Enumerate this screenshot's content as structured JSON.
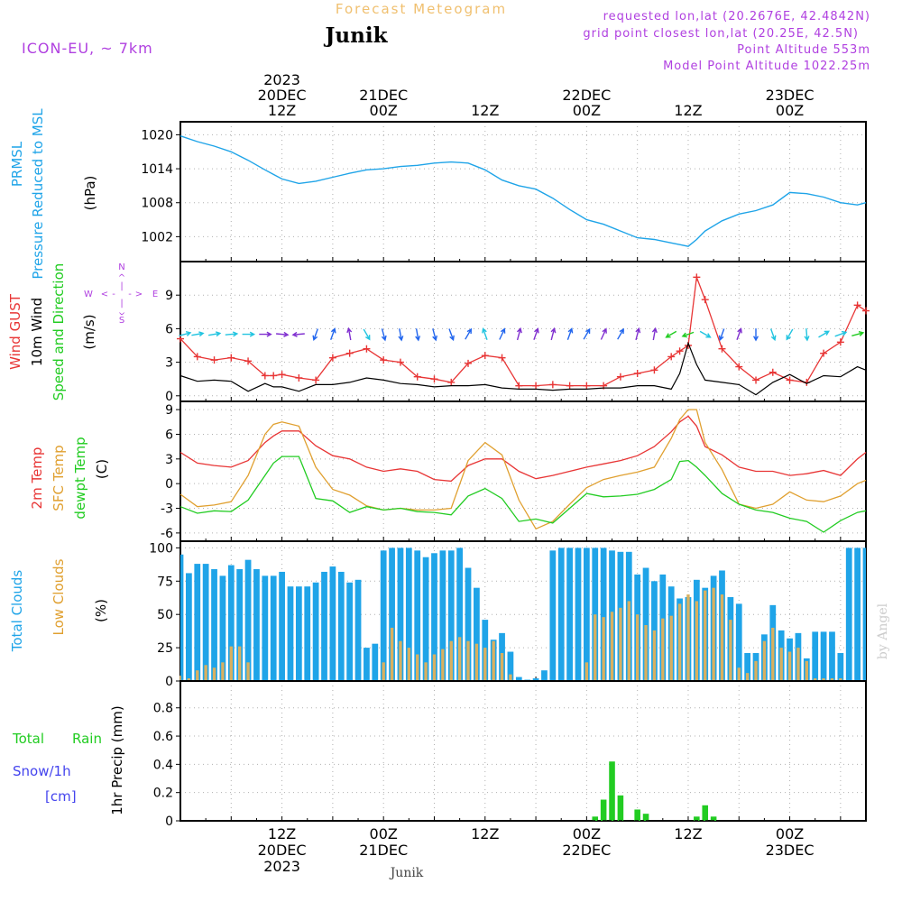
{
  "header": {
    "title": "Forecast Meteogram",
    "location": "Junik",
    "model": "ICON-EU, ~ 7km",
    "requested": "requested lon,lat (20.2676E, 42.4842N)",
    "grid_point": "grid point closest lon,lat (20.25E, 42.5N)",
    "point_altitude": "Point Altitude 553m",
    "model_altitude": "Model Point Altitude 1022.25m"
  },
  "colors": {
    "blue": "#1fa4e8",
    "red": "#e83535",
    "orange": "#e0a030",
    "green": "#22cc22",
    "purple": "#b040e0",
    "black": "#000000",
    "title_orange": "#f0c070",
    "grey_credit": "#cccccc"
  },
  "time_axis": {
    "top_labels": [
      {
        "hour": 12,
        "lines": [
          "2023",
          "20DEC",
          "12Z"
        ]
      },
      {
        "hour": 24,
        "lines": [
          "21DEC",
          "00Z"
        ]
      },
      {
        "hour": 36,
        "lines": [
          "12Z"
        ]
      },
      {
        "hour": 48,
        "lines": [
          "22DEC",
          "00Z"
        ]
      },
      {
        "hour": 60,
        "lines": [
          "12Z"
        ]
      },
      {
        "hour": 72,
        "lines": [
          "23DEC",
          "00Z"
        ]
      }
    ],
    "bottom_labels": [
      {
        "hour": 12,
        "lines": [
          "12Z",
          "20DEC",
          "2023"
        ]
      },
      {
        "hour": 24,
        "lines": [
          "00Z",
          "21DEC"
        ]
      },
      {
        "hour": 36,
        "lines": [
          "12Z"
        ]
      },
      {
        "hour": 48,
        "lines": [
          "00Z",
          "22DEC"
        ]
      },
      {
        "hour": 60,
        "lines": [
          "12Z"
        ]
      },
      {
        "hour": 72,
        "lines": [
          "00Z",
          "23DEC"
        ]
      }
    ],
    "footer_location": "Junik",
    "credit": "by Angel"
  },
  "panels_labels": {
    "pressure": {
      "line1": "PRMSL",
      "line2": "Pressure Reduced to MSL",
      "unit": "(hPa)"
    },
    "wind": {
      "line1": "Wind GUST",
      "line2": "10m Wind",
      "line3": "Speed and Direction",
      "unit": "(m/s)",
      "compass": {
        "n": "N",
        "s": "S",
        "e": "E",
        "w": "W",
        "arrow_left": "<",
        "arrow_right": ">",
        "dash_h": "-",
        "dash_v": "|",
        "arrow_v": "^"
      }
    },
    "temp": {
      "line1": "2m Temp",
      "line2": "SFC Temp",
      "line3": "dewpt Temp",
      "unit": "(C)"
    },
    "clouds": {
      "line1": "Total Clouds",
      "line2": "Low Clouds",
      "unit": "(%)"
    },
    "precip": {
      "line1": "Total",
      "line1b": "Rain",
      "line2": "Snow/1h",
      "line3": "[cm]",
      "unit": "1hr Precip (mm)"
    }
  },
  "chart_data": [
    {
      "type": "line",
      "title": "PRMSL Pressure Reduced to MSL",
      "ylabel": "(hPa)",
      "ylim": [
        997.6,
        1022.3
      ],
      "yticks": [
        1002,
        1008,
        1014,
        1020
      ],
      "x": [
        0,
        2,
        4,
        6,
        8,
        10,
        11,
        12,
        14,
        16,
        18,
        20,
        22,
        24,
        26,
        28,
        30,
        32,
        34,
        36,
        38,
        40,
        42,
        44,
        46,
        48,
        50,
        52,
        54,
        56,
        58,
        59,
        60,
        61,
        62,
        64,
        66,
        68,
        70,
        72,
        74,
        76,
        78,
        80,
        81
      ],
      "series": [
        {
          "name": "PRMSL",
          "values": [
            1019.8,
            1018.8,
            1018.0,
            1017.0,
            1015.5,
            1013.8,
            1013.0,
            1012.2,
            1011.4,
            1011.8,
            1012.5,
            1013.2,
            1013.8,
            1014.0,
            1014.4,
            1014.6,
            1015.0,
            1015.2,
            1015.0,
            1013.8,
            1012.0,
            1011.0,
            1010.4,
            1008.8,
            1006.8,
            1005.0,
            1004.2,
            1003.0,
            1001.8,
            1001.5,
            1000.9,
            1000.6,
            1000.3,
            1001.5,
            1003.0,
            1004.8,
            1006.0,
            1006.6,
            1007.6,
            1009.8,
            1009.6,
            1009.0,
            1008.0,
            1007.6,
            1008.0
          ]
        }
      ]
    },
    {
      "type": "line",
      "title": "Wind GUST / 10m Wind Speed and Direction",
      "ylabel": "(m/s)",
      "ylim": [
        -0.5,
        12
      ],
      "yticks": [
        0,
        3,
        6,
        9
      ],
      "x": [
        0,
        2,
        4,
        6,
        8,
        10,
        11,
        12,
        14,
        16,
        18,
        20,
        22,
        24,
        26,
        28,
        30,
        32,
        34,
        36,
        38,
        40,
        42,
        44,
        46,
        48,
        50,
        52,
        54,
        56,
        58,
        59,
        60,
        61,
        62,
        64,
        66,
        68,
        70,
        72,
        74,
        76,
        78,
        80,
        81
      ],
      "series": [
        {
          "name": "Wind GUST",
          "values": [
            5.1,
            3.5,
            3.2,
            3.4,
            3.1,
            1.8,
            1.8,
            1.9,
            1.6,
            1.4,
            3.4,
            3.8,
            4.2,
            3.2,
            3.0,
            1.7,
            1.5,
            1.2,
            2.9,
            3.6,
            3.4,
            0.9,
            0.9,
            1.0,
            0.9,
            0.9,
            0.9,
            1.7,
            2.0,
            2.3,
            3.5,
            4.0,
            4.5,
            10.6,
            8.6,
            4.2,
            2.6,
            1.4,
            2.1,
            1.4,
            1.2,
            3.8,
            4.8,
            8.1,
            7.6
          ]
        },
        {
          "name": "10m Wind",
          "values": [
            1.8,
            1.3,
            1.4,
            1.3,
            0.4,
            1.1,
            0.8,
            0.8,
            0.4,
            1.0,
            1.0,
            1.2,
            1.6,
            1.4,
            1.1,
            1.0,
            0.8,
            0.9,
            0.9,
            1.0,
            0.7,
            0.6,
            0.6,
            0.5,
            0.6,
            0.6,
            0.7,
            0.7,
            0.9,
            0.9,
            0.6,
            2.0,
            4.7,
            2.8,
            1.4,
            1.2,
            1.0,
            0.1,
            1.2,
            1.9,
            1.1,
            1.8,
            1.7,
            2.6,
            2.3
          ]
        }
      ],
      "wind_arrows": [
        {
          "hour": 0.5,
          "dir_deg": 75,
          "color": "cyan"
        },
        {
          "hour": 2,
          "dir_deg": 80,
          "color": "cyan"
        },
        {
          "hour": 4,
          "dir_deg": 80,
          "color": "cyan"
        },
        {
          "hour": 6,
          "dir_deg": 85,
          "color": "cyan"
        },
        {
          "hour": 8,
          "dir_deg": 90,
          "color": "cyan"
        },
        {
          "hour": 10,
          "dir_deg": 90,
          "color": "purple"
        },
        {
          "hour": 12,
          "dir_deg": 95,
          "color": "purple"
        },
        {
          "hour": 14,
          "dir_deg": 265,
          "color": "purple"
        },
        {
          "hour": 16,
          "dir_deg": 200,
          "color": "blue"
        },
        {
          "hour": 18,
          "dir_deg": 20,
          "color": "blue"
        },
        {
          "hour": 20,
          "dir_deg": 350,
          "color": "purple"
        },
        {
          "hour": 22,
          "dir_deg": 150,
          "color": "cyan"
        },
        {
          "hour": 24,
          "dir_deg": 165,
          "color": "blue"
        },
        {
          "hour": 26,
          "dir_deg": 170,
          "color": "blue"
        },
        {
          "hour": 28,
          "dir_deg": 170,
          "color": "blue"
        },
        {
          "hour": 30,
          "dir_deg": 165,
          "color": "blue"
        },
        {
          "hour": 32,
          "dir_deg": 160,
          "color": "blue"
        },
        {
          "hour": 34,
          "dir_deg": 30,
          "color": "blue"
        },
        {
          "hour": 36,
          "dir_deg": 340,
          "color": "cyan"
        },
        {
          "hour": 38,
          "dir_deg": 25,
          "color": "blue"
        },
        {
          "hour": 40,
          "dir_deg": 15,
          "color": "purple"
        },
        {
          "hour": 42,
          "dir_deg": 20,
          "color": "purple"
        },
        {
          "hour": 44,
          "dir_deg": 15,
          "color": "purple"
        },
        {
          "hour": 46,
          "dir_deg": 20,
          "color": "blue"
        },
        {
          "hour": 48,
          "dir_deg": 30,
          "color": "blue"
        },
        {
          "hour": 50,
          "dir_deg": 25,
          "color": "purple"
        },
        {
          "hour": 52,
          "dir_deg": 30,
          "color": "blue"
        },
        {
          "hour": 54,
          "dir_deg": 15,
          "color": "purple"
        },
        {
          "hour": 56,
          "dir_deg": 10,
          "color": "purple"
        },
        {
          "hour": 58,
          "dir_deg": 240,
          "color": "green"
        },
        {
          "hour": 60,
          "dir_deg": 250,
          "color": "green"
        },
        {
          "hour": 62,
          "dir_deg": 120,
          "color": "cyan"
        },
        {
          "hour": 64,
          "dir_deg": 200,
          "color": "blue"
        },
        {
          "hour": 66,
          "dir_deg": 20,
          "color": "purple"
        },
        {
          "hour": 68,
          "dir_deg": 180,
          "color": "blue"
        },
        {
          "hour": 70,
          "dir_deg": 160,
          "color": "cyan"
        },
        {
          "hour": 72,
          "dir_deg": 210,
          "color": "cyan"
        },
        {
          "hour": 74,
          "dir_deg": 175,
          "color": "cyan"
        },
        {
          "hour": 76,
          "dir_deg": 60,
          "color": "cyan"
        },
        {
          "hour": 78,
          "dir_deg": 70,
          "color": "cyan"
        },
        {
          "hour": 80,
          "dir_deg": 75,
          "color": "green"
        }
      ]
    },
    {
      "type": "line",
      "title": "2m Temp / SFC Temp / dewpt Temp",
      "ylabel": "(C)",
      "ylim": [
        -7,
        10
      ],
      "yticks": [
        -6,
        -3,
        0,
        3,
        6,
        9
      ],
      "x": [
        0,
        2,
        4,
        6,
        8,
        10,
        11,
        12,
        14,
        16,
        18,
        20,
        22,
        24,
        26,
        28,
        30,
        32,
        34,
        36,
        38,
        40,
        42,
        44,
        46,
        48,
        50,
        52,
        54,
        56,
        58,
        59,
        60,
        61,
        62,
        64,
        66,
        68,
        70,
        72,
        74,
        76,
        78,
        80,
        81
      ],
      "series": [
        {
          "name": "2m Temp",
          "values": [
            3.8,
            2.5,
            2.2,
            2.0,
            2.8,
            5.0,
            5.8,
            6.4,
            6.4,
            4.6,
            3.4,
            3.0,
            2.0,
            1.5,
            1.8,
            1.5,
            0.5,
            0.3,
            2.2,
            3.0,
            3.0,
            1.5,
            0.6,
            1.0,
            1.5,
            2.0,
            2.4,
            2.8,
            3.4,
            4.5,
            6.3,
            7.5,
            8.2,
            7.0,
            4.5,
            3.5,
            2.0,
            1.5,
            1.5,
            1.0,
            1.2,
            1.6,
            1.0,
            3.0,
            3.8
          ]
        },
        {
          "name": "SFC Temp",
          "values": [
            -1.3,
            -2.8,
            -2.6,
            -2.2,
            1.0,
            6.0,
            7.2,
            7.5,
            7.0,
            2.0,
            -0.7,
            -1.4,
            -2.7,
            -3.2,
            -3.0,
            -3.2,
            -3.2,
            -3.0,
            2.8,
            5.0,
            3.5,
            -2.0,
            -5.5,
            -4.6,
            -2.5,
            -0.5,
            0.5,
            1.0,
            1.4,
            2.0,
            5.5,
            7.8,
            9.0,
            9.0,
            5.0,
            1.7,
            -2.5,
            -3.0,
            -2.5,
            -1.0,
            -2.0,
            -2.2,
            -1.5,
            0.0,
            0.4
          ]
        },
        {
          "name": "dewpt Temp",
          "values": [
            -2.8,
            -3.6,
            -3.3,
            -3.4,
            -2.0,
            1.0,
            2.5,
            3.3,
            3.3,
            -1.8,
            -2.1,
            -3.5,
            -2.8,
            -3.2,
            -3.0,
            -3.4,
            -3.5,
            -3.8,
            -1.5,
            -0.6,
            -1.8,
            -4.6,
            -4.3,
            -4.8,
            -3.0,
            -1.2,
            -1.6,
            -1.5,
            -1.3,
            -0.7,
            0.5,
            2.7,
            2.8,
            2.0,
            1.0,
            -1.2,
            -2.5,
            -3.2,
            -3.5,
            -4.2,
            -4.6,
            -5.9,
            -4.5,
            -3.5,
            -3.3
          ]
        }
      ]
    },
    {
      "type": "bar",
      "title": "Total Clouds / Low Clouds",
      "ylabel": "(%)",
      "ylim": [
        0,
        105
      ],
      "yticks": [
        0,
        25,
        50,
        75,
        100
      ],
      "x": [
        0,
        1,
        2,
        3,
        4,
        5,
        6,
        7,
        8,
        9,
        10,
        11,
        12,
        13,
        14,
        15,
        16,
        17,
        18,
        19,
        20,
        21,
        22,
        23,
        24,
        25,
        26,
        27,
        28,
        29,
        30,
        31,
        32,
        33,
        34,
        35,
        36,
        37,
        38,
        39,
        40,
        41,
        42,
        43,
        44,
        45,
        46,
        47,
        48,
        49,
        50,
        51,
        52,
        53,
        54,
        55,
        56,
        57,
        58,
        59,
        60,
        61,
        62,
        63,
        64,
        65,
        66,
        67,
        68,
        69,
        70,
        71,
        72,
        73,
        74,
        75,
        76,
        77,
        78,
        79,
        80,
        81
      ],
      "series": [
        {
          "name": "Total Clouds",
          "values": [
            95,
            81,
            88,
            88,
            84,
            79,
            87,
            84,
            91,
            84,
            79,
            79,
            82,
            71,
            71,
            71,
            74,
            82,
            86,
            82,
            74,
            76,
            25,
            28,
            98,
            100,
            100,
            100,
            98,
            93,
            96,
            98,
            98,
            100,
            85,
            70,
            46,
            31,
            36,
            22,
            3,
            1,
            2,
            8,
            98,
            100,
            100,
            100,
            100,
            100,
            100,
            98,
            97,
            97,
            80,
            85,
            75,
            80,
            71,
            62,
            63,
            76,
            70,
            79,
            83,
            63,
            58,
            21,
            21,
            35,
            57,
            38,
            32,
            36,
            17,
            37,
            37,
            37,
            21,
            100,
            100,
            100
          ]
        },
        {
          "name": "Low Clouds",
          "values": [
            4,
            2,
            8,
            12,
            10,
            14,
            26,
            26,
            14,
            0,
            0,
            0,
            0,
            0,
            0,
            0,
            0,
            0,
            0,
            0,
            0,
            0,
            0,
            0,
            14,
            40,
            30,
            25,
            20,
            14,
            20,
            24,
            30,
            33,
            30,
            28,
            25,
            30,
            21,
            5,
            0,
            0,
            0,
            0,
            0,
            0,
            0,
            0,
            14,
            50,
            48,
            52,
            55,
            60,
            50,
            42,
            38,
            47,
            49,
            58,
            65,
            60,
            68,
            70,
            65,
            46,
            10,
            6,
            15,
            30,
            40,
            25,
            22,
            25,
            15,
            2,
            2,
            2,
            2,
            0,
            0,
            0
          ]
        }
      ]
    },
    {
      "type": "bar",
      "title": "1hr Precip",
      "ylabel": "1hr Precip (mm)",
      "ylim": [
        0,
        0.99
      ],
      "yticks": [
        0,
        0.2,
        0.4,
        0.6,
        0.8
      ],
      "x": [
        49,
        50,
        51,
        52,
        53,
        54,
        55,
        56,
        57,
        58,
        59,
        60,
        61,
        62,
        63
      ],
      "series": [
        {
          "name": "Total Rain",
          "values": [
            0.03,
            0.15,
            0.42,
            0.18,
            0.0,
            0.08,
            0.05,
            0.0,
            0.0,
            0.0,
            0.0,
            0.0,
            0.03,
            0.11,
            0.03
          ]
        },
        {
          "name": "Snow/1h",
          "values": [
            0,
            0,
            0,
            0,
            0,
            0,
            0,
            0,
            0,
            0,
            0,
            0,
            0,
            0,
            0
          ]
        }
      ]
    }
  ]
}
